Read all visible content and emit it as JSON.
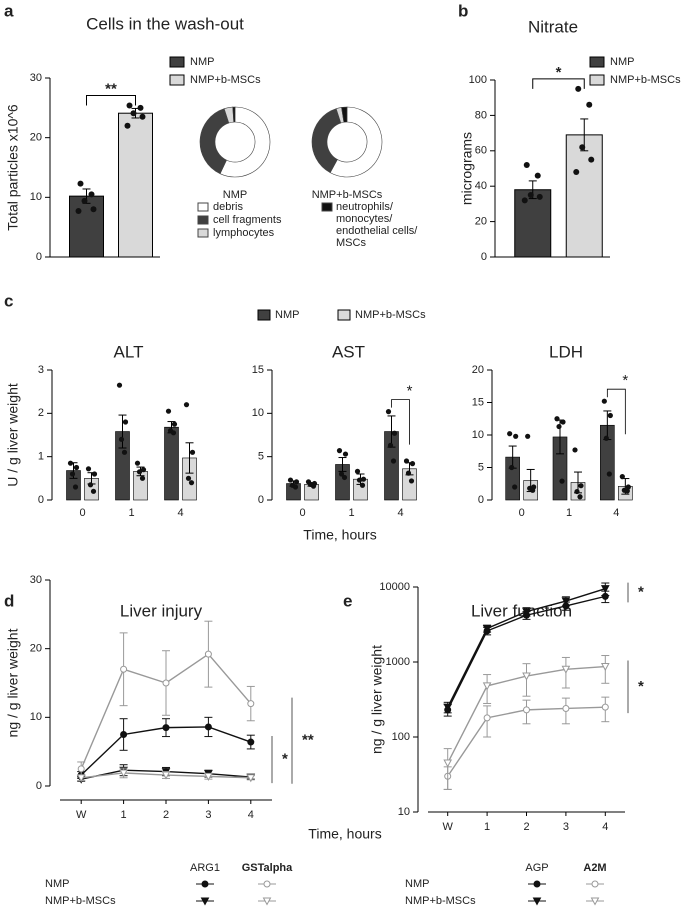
{
  "chart_data": [
    {
      "type": "bar",
      "panel": "a",
      "title": "Cells in the wash-out",
      "ylabel": "Total particles x10^6",
      "ylim": [
        0,
        30
      ],
      "yticks": [
        0,
        10,
        20,
        30
      ],
      "significance": "**",
      "series": [
        {
          "name": "NMP",
          "color": "#404040",
          "value": 10.2,
          "error": 1.2,
          "points": [
            12.3,
            10.5,
            9.4,
            8.0,
            7.7
          ]
        },
        {
          "name": "NMP+b-MSCs",
          "color": "#d9d9d9",
          "value": 24.1,
          "error": 0.8,
          "points": [
            25.4,
            25.0,
            24.1,
            23.5,
            22.0
          ]
        }
      ]
    },
    {
      "type": "pie",
      "panel": "a",
      "categories": [
        "debris",
        "cell fragments",
        "lymphocytes",
        "neutrophils/ monocytes/ endothelial cells/ MSCs"
      ],
      "colors": [
        "#ffffff",
        "#404040",
        "#d9d9d9",
        "#111111"
      ],
      "series": [
        {
          "name": "NMP",
          "values": [
            57,
            38,
            4,
            1
          ]
        },
        {
          "name": "NMP+b-MSCs",
          "values": [
            58,
            37,
            2.5,
            2.5
          ]
        }
      ]
    },
    {
      "type": "bar",
      "panel": "b",
      "title": "Nitrate",
      "ylabel": "micrograms",
      "ylim": [
        0,
        100
      ],
      "yticks": [
        0,
        20,
        40,
        60,
        80,
        100
      ],
      "significance": "*",
      "series": [
        {
          "name": "NMP",
          "color": "#404040",
          "value": 38,
          "error": 5,
          "points": [
            52,
            46,
            35,
            34,
            32
          ]
        },
        {
          "name": "NMP+b-MSCs",
          "color": "#d9d9d9",
          "value": 69,
          "error": 9,
          "points": [
            95,
            86,
            62,
            55,
            48
          ]
        }
      ]
    },
    {
      "type": "grouped_bar",
      "panel": "c",
      "ylabel": "U / g liver weight",
      "xlabel": "Time, hours",
      "legend": [
        {
          "name": "NMP",
          "color": "#404040"
        },
        {
          "name": "NMP+b-MSCs",
          "color": "#d9d9d9"
        }
      ],
      "plots": [
        {
          "title": "ALT",
          "categories": [
            "0",
            "1",
            "4"
          ],
          "ylim": [
            0,
            3
          ],
          "yticks": [
            0,
            1,
            2,
            3
          ],
          "significance": [
            null,
            null,
            null
          ],
          "series": [
            {
              "values": [
                0.68,
                1.58,
                1.68
              ],
              "errors": [
                0.18,
                0.38,
                0.13
              ],
              "points": [
                [
                  0.85,
                  0.75,
                  0.6,
                  0.3
                ],
                [
                  2.65,
                  1.8,
                  1.4,
                  1.1
                ],
                [
                  2.05,
                  1.75,
                  1.6,
                  1.55
                ]
              ]
            },
            {
              "values": [
                0.5,
                0.66,
                0.97
              ],
              "errors": [
                0.13,
                0.1,
                0.35
              ],
              "points": [
                [
                  0.72,
                  0.6,
                  0.35,
                  0.2
                ],
                [
                  0.85,
                  0.7,
                  0.65,
                  0.5
                ],
                [
                  2.2,
                  1.1,
                  0.5,
                  0.4
                ]
              ]
            }
          ]
        },
        {
          "title": "AST",
          "categories": [
            "0",
            "1",
            "4"
          ],
          "ylim": [
            0,
            15
          ],
          "yticks": [
            0,
            5,
            10,
            15
          ],
          "significance": [
            null,
            null,
            "*"
          ],
          "series": [
            {
              "values": [
                1.9,
                4.1,
                7.9
              ],
              "errors": [
                0.3,
                0.8,
                1.8
              ],
              "points": [
                [
                  2.3,
                  2.1,
                  1.7,
                  1.5
                ],
                [
                  5.7,
                  5.3,
                  3.0,
                  2.6
                ],
                [
                  10.2,
                  7.7,
                  6.3,
                  4.5
                ]
              ]
            },
            {
              "values": [
                1.8,
                2.4,
                3.6
              ],
              "errors": [
                0.2,
                0.6,
                0.7
              ],
              "points": [
                [
                  2.1,
                  1.9,
                  1.8,
                  1.6
                ],
                [
                  3.3,
                  2.4,
                  2.3,
                  1.7
                ],
                [
                  4.5,
                  4.2,
                  3.1,
                  2.2
                ]
              ]
            }
          ]
        },
        {
          "title": "LDH",
          "categories": [
            "0",
            "1",
            "4"
          ],
          "ylim": [
            0,
            20
          ],
          "yticks": [
            0,
            5,
            10,
            15,
            20
          ],
          "significance": [
            null,
            null,
            "*"
          ],
          "series": [
            {
              "values": [
                6.6,
                9.7,
                11.5
              ],
              "errors": [
                1.7,
                2.6,
                2.2
              ],
              "points": [
                [
                  10.2,
                  9.8,
                  5.0,
                  2.0
                ],
                [
                  12.5,
                  12.0,
                  11.3,
                  2.9
                ],
                [
                  15.2,
                  13.0,
                  9.5,
                  4.0
                ]
              ]
            },
            {
              "values": [
                3.0,
                2.7,
                2.1
              ],
              "errors": [
                1.7,
                1.6,
                1.2
              ],
              "points": [
                [
                  9.8,
                  2.0,
                  1.8,
                  1.5
                ],
                [
                  7.7,
                  2.2,
                  1.3,
                  0.5
                ],
                [
                  3.6,
                  2.0,
                  1.5,
                  1.4
                ]
              ]
            }
          ]
        }
      ]
    },
    {
      "type": "line",
      "panel": "d",
      "title": "Liver injury",
      "ylabel": "ng / g liver weight",
      "xlabel": "Time, hours",
      "categories": [
        "W",
        "1",
        "2",
        "3",
        "4"
      ],
      "ylim": [
        0,
        30
      ],
      "yticks": [
        0,
        10,
        20,
        30
      ],
      "log": false,
      "rows": [
        {
          "name": "NMP",
          "marker": "circle"
        },
        {
          "name": "NMP+b-MSCs",
          "marker": "triangle"
        }
      ],
      "significance": [
        "*",
        "**"
      ],
      "groups": [
        {
          "name": "ARG1",
          "color": "#111111",
          "open": false,
          "series": [
            {
              "values": [
                1.6,
                7.5,
                8.5,
                8.6,
                6.4
              ],
              "errors": [
                0.5,
                2.3,
                1.3,
                1.4,
                1.0
              ]
            },
            {
              "values": [
                1.0,
                2.3,
                2.1,
                1.8,
                1.3
              ],
              "errors": [
                0.3,
                0.8,
                0.6,
                0.5,
                0.3
              ]
            }
          ]
        },
        {
          "name": "GSTalpha",
          "color": "#999999",
          "open": true,
          "series": [
            {
              "values": [
                2.5,
                17,
                15,
                19.2,
                12
              ],
              "errors": [
                1,
                5.3,
                4.7,
                4.8,
                2.5
              ]
            },
            {
              "values": [
                1.2,
                1.9,
                1.6,
                1.4,
                1.2
              ],
              "errors": [
                0.4,
                0.7,
                0.5,
                0.4,
                0.3
              ]
            }
          ]
        }
      ]
    },
    {
      "type": "line",
      "panel": "e",
      "title": "Liver function",
      "ylabel": "ng / g liver weight",
      "categories": [
        "W",
        "1",
        "2",
        "3",
        "4"
      ],
      "ylim": [
        10,
        10000
      ],
      "yticks": [
        10,
        100,
        1000,
        10000
      ],
      "log": true,
      "rows": [
        {
          "name": "NMP",
          "marker": "circle"
        },
        {
          "name": "NMP+b-MSCs",
          "marker": "triangle"
        }
      ],
      "significance": [
        "*",
        "*"
      ],
      "groups": [
        {
          "name": "AGP",
          "color": "#111111",
          "open": false,
          "series": [
            {
              "values": [
                230,
                2600,
                4200,
                5600,
                7500
              ],
              "errors": [
                40,
                300,
                500,
                700,
                1300
              ]
            },
            {
              "values": [
                250,
                2800,
                4700,
                6500,
                9500
              ],
              "errors": [
                40,
                300,
                600,
                900,
                1800
              ]
            }
          ]
        },
        {
          "name": "A2M",
          "color": "#999999",
          "open": true,
          "series": [
            {
              "values": [
                30,
                180,
                230,
                240,
                250
              ],
              "errors": [
                10,
                80,
                80,
                90,
                90
              ]
            },
            {
              "values": [
                45,
                480,
                650,
                800,
                870
              ],
              "errors": [
                25,
                200,
                300,
                350,
                350
              ]
            }
          ]
        }
      ]
    }
  ]
}
